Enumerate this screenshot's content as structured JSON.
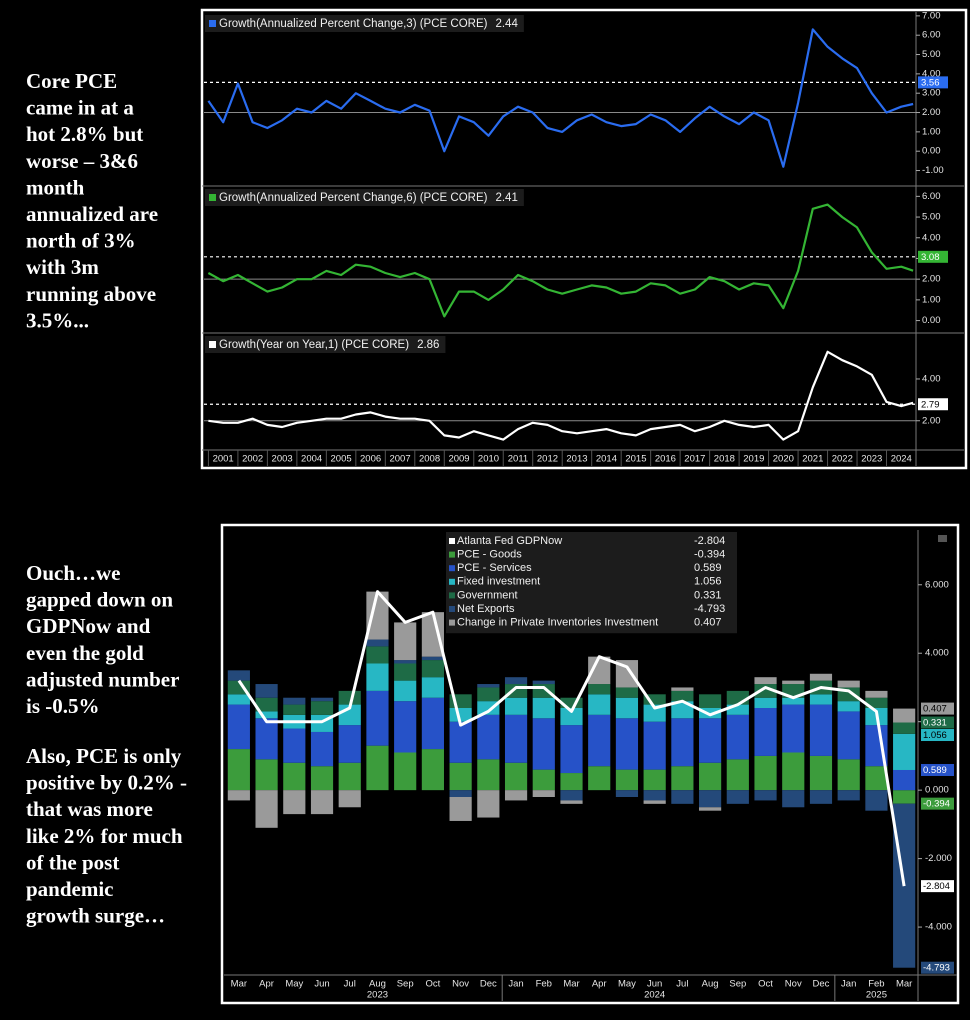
{
  "left_text": [
    {
      "lines": [
        "Core PCE",
        "came in at a",
        "hot 2.8% but",
        "worse – 3&6",
        "month",
        "annualized are",
        "north of  3%",
        "with 3m",
        "running above",
        "3.5%..."
      ]
    },
    {
      "lines": [
        "Ouch…we",
        "gapped down on",
        "GDPNow and",
        "even the gold",
        "adjusted number",
        "is -0.5%"
      ]
    },
    {
      "lines": [
        "Also, PCE is only",
        "positive by 0.2% -",
        "that was more",
        "like 2% for much",
        "of  the post",
        "pandemic",
        "growth surge…"
      ]
    }
  ],
  "chart_data": [
    {
      "type": "line",
      "x": [
        2001,
        2001.5,
        2002,
        2002.5,
        2003,
        2003.5,
        2004,
        2004.5,
        2005,
        2005.5,
        2006,
        2006.5,
        2007,
        2007.5,
        2008,
        2008.5,
        2009,
        2009.5,
        2010,
        2010.5,
        2011,
        2011.5,
        2012,
        2012.5,
        2013,
        2013.5,
        2014,
        2014.5,
        2015,
        2015.5,
        2016,
        2016.5,
        2017,
        2017.5,
        2018,
        2018.5,
        2019,
        2019.5,
        2020,
        2020.5,
        2021,
        2021.5,
        2022,
        2022.5,
        2023,
        2023.5,
        2024,
        2024.5,
        2024.9
      ],
      "xlim": [
        2000.85,
        2025
      ],
      "xticks": [
        2001,
        2002,
        2003,
        2004,
        2005,
        2006,
        2007,
        2008,
        2009,
        2010,
        2011,
        2012,
        2013,
        2014,
        2015,
        2016,
        2017,
        2018,
        2019,
        2020,
        2021,
        2022,
        2023,
        2024
      ],
      "panels": [
        {
          "series": [
            {
              "name": "Growth(Annualized Percent Change,3) (PCE CORE)",
              "color": "#2a6cf0",
              "values": [
                2.6,
                1.5,
                3.5,
                1.5,
                1.2,
                1.6,
                2.2,
                2.0,
                2.6,
                2.2,
                3.0,
                2.6,
                2.2,
                2.0,
                2.4,
                2.1,
                0.0,
                1.8,
                1.5,
                0.8,
                1.8,
                2.3,
                2.0,
                1.2,
                1.0,
                1.6,
                1.9,
                1.5,
                1.3,
                1.4,
                1.9,
                1.6,
                1.0,
                1.7,
                2.3,
                1.8,
                1.4,
                2.0,
                1.6,
                -0.8,
                2.5,
                6.3,
                5.4,
                4.8,
                4.3,
                3.0,
                2.0,
                2.3,
                2.44
              ]
            }
          ],
          "legend_value": 2.44,
          "reference": 3.56,
          "target": 2,
          "ylim": [
            -1.8,
            7.2
          ],
          "yticks": [
            {
              "value": -1,
              "label": "-1.00"
            },
            {
              "value": 0,
              "label": "0.00"
            },
            {
              "value": 1,
              "label": "1.00"
            },
            {
              "value": 2,
              "label": "2.00"
            },
            {
              "value": 3,
              "label": "3.00"
            },
            {
              "value": 4,
              "label": "4.00"
            },
            {
              "value": 5,
              "label": "5.00"
            },
            {
              "value": 6,
              "label": "6.00"
            },
            {
              "value": 7,
              "label": "7.00"
            }
          ]
        },
        {
          "series": [
            {
              "name": "Growth(Annualized Percent Change,6) (PCE CORE)",
              "color": "#34b534",
              "values": [
                2.3,
                1.9,
                2.2,
                1.8,
                1.4,
                1.6,
                2.0,
                2.0,
                2.4,
                2.2,
                2.7,
                2.6,
                2.3,
                2.1,
                2.3,
                2.0,
                0.2,
                1.4,
                1.4,
                1.0,
                1.5,
                2.2,
                1.9,
                1.5,
                1.3,
                1.5,
                1.7,
                1.6,
                1.3,
                1.4,
                1.8,
                1.7,
                1.3,
                1.5,
                2.1,
                1.9,
                1.5,
                1.8,
                1.7,
                0.6,
                2.4,
                5.4,
                5.6,
                5.0,
                4.5,
                3.3,
                2.5,
                2.6,
                2.41
              ]
            }
          ],
          "legend_value": 2.41,
          "reference": 3.08,
          "target": 2,
          "ylim": [
            -0.6,
            6.5
          ],
          "yticks": [
            {
              "value": 0,
              "label": "0.00"
            },
            {
              "value": 1,
              "label": "1.00"
            },
            {
              "value": 2,
              "label": "2.00"
            },
            {
              "value": 3,
              "label": "3.00"
            },
            {
              "value": 4,
              "label": "4.00"
            },
            {
              "value": 5,
              "label": "5.00"
            },
            {
              "value": 6,
              "label": "6.00"
            }
          ]
        },
        {
          "series": [
            {
              "name": "Growth(Year on Year,1) (PCE CORE)",
              "color": "#ffffff",
              "values": [
                2.0,
                1.9,
                1.9,
                2.1,
                1.8,
                1.7,
                1.9,
                2.0,
                2.1,
                2.1,
                2.3,
                2.4,
                2.2,
                2.1,
                2.1,
                2.0,
                1.3,
                1.2,
                1.5,
                1.3,
                1.1,
                1.6,
                1.9,
                1.8,
                1.5,
                1.4,
                1.5,
                1.6,
                1.4,
                1.3,
                1.6,
                1.7,
                1.8,
                1.5,
                1.7,
                2.0,
                1.8,
                1.7,
                1.8,
                1.1,
                1.5,
                3.6,
                5.3,
                4.9,
                4.6,
                4.2,
                2.9,
                2.7,
                2.86
              ]
            }
          ],
          "legend_value": 2.86,
          "reference": 2.79,
          "target": 2,
          "ylim": [
            0.6,
            6.2
          ],
          "yticks": [
            {
              "value": 2,
              "label": "2.00"
            },
            {
              "value": 4,
              "label": "4.00"
            }
          ]
        }
      ]
    },
    {
      "type": "bar",
      "stacked": true,
      "categories": [
        "Mar",
        "Apr",
        "May",
        "Jun",
        "Jul",
        "Aug",
        "Sep",
        "Oct",
        "Nov",
        "Dec",
        "Jan",
        "Feb",
        "Mar",
        "Apr",
        "May",
        "Jun",
        "Jul",
        "Aug",
        "Sep",
        "Oct",
        "Nov",
        "Dec",
        "Jan",
        "Feb",
        "Mar"
      ],
      "category_years": [
        null,
        null,
        null,
        null,
        null,
        "2023",
        null,
        null,
        null,
        null,
        null,
        null,
        null,
        null,
        null,
        "2024",
        null,
        null,
        null,
        null,
        null,
        null,
        null,
        "2025",
        null
      ],
      "ylim": [
        -5.4,
        7.6
      ],
      "yticks": [
        {
          "value": -4,
          "label": "-4.000"
        },
        {
          "value": -2,
          "label": "-2.000"
        },
        {
          "value": 0,
          "label": "0.000"
        },
        {
          "value": 2,
          "label": "2.000"
        },
        {
          "value": 4,
          "label": "4.000"
        },
        {
          "value": 6,
          "label": "6.000"
        }
      ],
      "series": [
        {
          "name": "Atlanta Fed GDPNow",
          "type": "line",
          "color": "#ffffff",
          "values": [
            3.2,
            2.0,
            2.0,
            2.0,
            2.4,
            5.8,
            4.9,
            5.2,
            1.9,
            2.3,
            3.0,
            3.0,
            2.3,
            3.9,
            3.6,
            2.4,
            2.6,
            2.2,
            2.5,
            3.0,
            2.7,
            3.0,
            2.9,
            2.3,
            -2.804
          ]
        },
        {
          "name": "PCE - Goods",
          "type": "bar",
          "color": "#3c9c3c",
          "values": [
            1.2,
            0.9,
            0.8,
            0.7,
            0.8,
            1.3,
            1.1,
            1.2,
            0.8,
            0.9,
            0.8,
            0.6,
            0.5,
            0.7,
            0.6,
            0.6,
            0.7,
            0.8,
            0.9,
            1.0,
            1.1,
            1.0,
            0.9,
            0.7,
            -0.394
          ]
        },
        {
          "name": "PCE - Services",
          "type": "bar",
          "color": "#2652c8",
          "values": [
            1.3,
            1.2,
            1.0,
            1.0,
            1.1,
            1.6,
            1.5,
            1.5,
            1.2,
            1.3,
            1.4,
            1.5,
            1.4,
            1.5,
            1.5,
            1.4,
            1.4,
            1.3,
            1.3,
            1.4,
            1.4,
            1.5,
            1.4,
            1.2,
            0.589
          ]
        },
        {
          "name": "Fixed investment",
          "type": "bar",
          "color": "#27b7c4",
          "values": [
            0.3,
            0.2,
            0.4,
            0.5,
            0.6,
            0.8,
            0.6,
            0.6,
            0.4,
            0.4,
            0.5,
            0.6,
            0.5,
            0.6,
            0.6,
            0.5,
            0.5,
            0.3,
            0.3,
            0.3,
            0.2,
            0.3,
            0.3,
            0.5,
            1.056
          ]
        },
        {
          "name": "Government",
          "type": "bar",
          "color": "#1e6b46",
          "values": [
            0.4,
            0.4,
            0.3,
            0.4,
            0.4,
            0.5,
            0.5,
            0.5,
            0.4,
            0.4,
            0.4,
            0.4,
            0.3,
            0.3,
            0.3,
            0.3,
            0.3,
            0.4,
            0.4,
            0.4,
            0.4,
            0.4,
            0.4,
            0.3,
            0.331
          ]
        },
        {
          "name": "Net Exports",
          "type": "bar",
          "color": "#24497a",
          "values": [
            0.3,
            0.4,
            0.2,
            0.1,
            0.0,
            0.2,
            0.1,
            0.1,
            -0.2,
            0.1,
            0.2,
            0.1,
            -0.3,
            0.0,
            -0.2,
            -0.3,
            -0.4,
            -0.5,
            -0.4,
            -0.3,
            -0.5,
            -0.4,
            -0.3,
            -0.6,
            -4.793
          ]
        },
        {
          "name": "Change in Private Inventories Investment",
          "type": "bar",
          "color": "#9a9a9a",
          "values": [
            -0.3,
            -1.1,
            -0.7,
            -0.7,
            -0.5,
            1.4,
            1.1,
            1.3,
            -0.7,
            -0.8,
            -0.3,
            -0.2,
            -0.1,
            0.8,
            0.8,
            -0.1,
            0.1,
            -0.1,
            0.0,
            0.2,
            0.1,
            0.2,
            0.2,
            0.2,
            0.407
          ]
        }
      ]
    }
  ]
}
